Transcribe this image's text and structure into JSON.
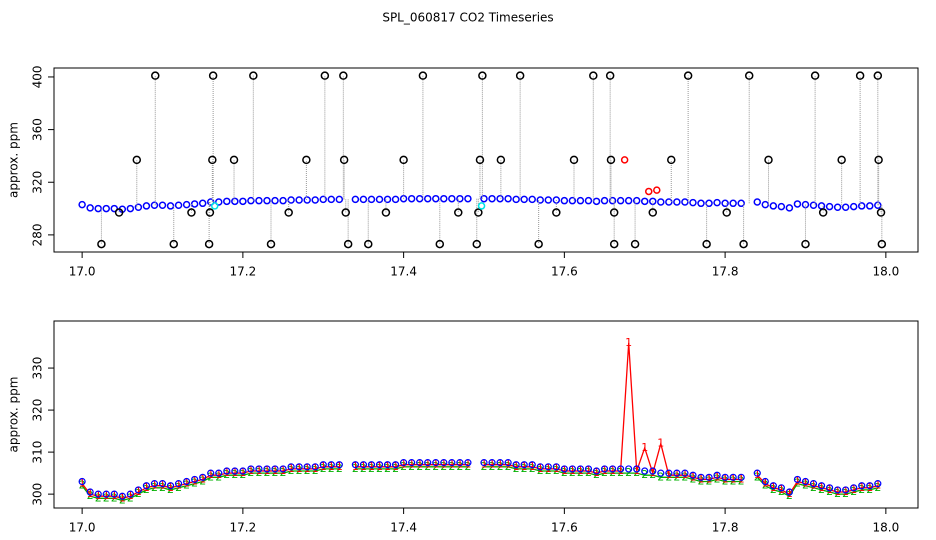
{
  "chart_data": [
    {
      "type": "scatter",
      "title": "SPL_060817  CO2 Timeseries",
      "y_label": "approx. ppm",
      "xlim": [
        16.965,
        18.04
      ],
      "ylim": [
        267,
        406.8
      ],
      "xticks": [
        {
          "value": 17,
          "label": "17.0"
        },
        {
          "value": 17.2,
          "label": "17.2"
        },
        {
          "value": 17.4,
          "label": "17.4"
        },
        {
          "value": 17.6,
          "label": "17.6"
        },
        {
          "value": 17.8,
          "label": "17.8"
        },
        {
          "value": 18,
          "label": "18.0"
        }
      ],
      "yticks": [
        280,
        320,
        360,
        400
      ],
      "x": [
        17.0,
        17.01,
        17.02,
        17.03,
        17.04,
        17.05,
        17.06,
        17.07,
        17.08,
        17.09,
        17.1,
        17.11,
        17.12,
        17.13,
        17.14,
        17.15,
        17.16,
        17.17,
        17.18,
        17.19,
        17.2,
        17.21,
        17.22,
        17.23,
        17.24,
        17.25,
        17.26,
        17.27,
        17.28,
        17.29,
        17.3,
        17.31,
        17.32,
        17.33,
        17.34,
        17.35,
        17.36,
        17.37,
        17.38,
        17.39,
        17.4,
        17.41,
        17.42,
        17.43,
        17.44,
        17.45,
        17.46,
        17.47,
        17.48,
        17.49,
        17.5,
        17.51,
        17.52,
        17.53,
        17.54,
        17.55,
        17.56,
        17.57,
        17.58,
        17.59,
        17.6,
        17.61,
        17.62,
        17.63,
        17.64,
        17.65,
        17.66,
        17.67,
        17.68,
        17.69,
        17.7,
        17.71,
        17.72,
        17.73,
        17.74,
        17.75,
        17.76,
        17.77,
        17.78,
        17.79,
        17.8,
        17.81,
        17.82,
        17.83,
        17.84,
        17.85,
        17.86,
        17.87,
        17.88,
        17.89,
        17.9,
        17.91,
        17.92,
        17.93,
        17.94,
        17.95,
        17.96,
        17.97,
        17.98,
        17.99
      ],
      "series": [
        {
          "color": "#0000ff",
          "values": [
            303,
            300.5,
            300,
            300,
            300,
            299.5,
            300,
            301,
            302,
            302.5,
            302.5,
            302,
            302.5,
            303,
            303.5,
            304,
            305,
            305,
            305.5,
            305.5,
            305.5,
            306,
            306,
            306,
            306,
            306,
            306.5,
            306.5,
            306.5,
            306.5,
            307,
            307,
            307,
            null,
            307,
            307,
            307,
            307,
            307,
            307,
            307.5,
            307.5,
            307.5,
            307.5,
            307.5,
            307.5,
            307.5,
            307.5,
            307.5,
            null,
            307.5,
            307.5,
            307.5,
            307.5,
            307,
            307,
            307,
            306.5,
            306.5,
            306.5,
            306,
            306,
            306,
            306,
            305.5,
            306,
            306,
            306,
            306,
            306,
            305.5,
            305.5,
            305,
            305,
            305,
            305,
            304.5,
            304,
            304,
            304.5,
            304,
            304,
            304,
            null,
            305,
            303,
            302,
            301.5,
            300.5,
            303.5,
            303,
            302.5,
            302,
            301.5,
            301,
            301,
            301.5,
            302,
            302,
            302.5
          ]
        },
        {
          "color": "#000000",
          "spikes": true,
          "x": [
            17.091,
            17.163,
            17.213,
            17.302,
            17.325,
            17.424,
            17.498,
            17.545,
            17.636,
            17.657,
            17.754,
            17.83,
            17.912,
            17.968,
            17.99,
            17.024,
            17.114,
            17.158,
            17.235,
            17.331,
            17.356,
            17.445,
            17.491,
            17.568,
            17.662,
            17.688,
            17.777,
            17.823,
            17.9,
            17.995,
            17.068,
            17.162,
            17.189,
            17.279,
            17.326,
            17.4,
            17.495,
            17.521,
            17.612,
            17.658,
            17.733,
            17.854,
            17.945,
            17.991,
            17.046,
            17.136,
            17.159,
            17.257,
            17.328,
            17.378,
            17.468,
            17.493,
            17.59,
            17.662,
            17.71,
            17.802,
            17.922,
            17.994
          ],
          "values": [
            401,
            401,
            401,
            401,
            401,
            401,
            401,
            401,
            401,
            401,
            401,
            401,
            401,
            401,
            401,
            273,
            273,
            273,
            273,
            273,
            273,
            273,
            273,
            273,
            273,
            273,
            273,
            273,
            273,
            273,
            337,
            337,
            337,
            337,
            337,
            337,
            337,
            337,
            337,
            337,
            337,
            337,
            337,
            337,
            297,
            297,
            297,
            297,
            297,
            297,
            297,
            297,
            297,
            297,
            297,
            297,
            297,
            297
          ]
        },
        {
          "color": "#ff0000",
          "x": [
            17.675,
            17.705,
            17.715
          ],
          "values": [
            337,
            313,
            314
          ]
        },
        {
          "color": "#00e5e5",
          "x": [
            17.165,
            17.497
          ],
          "values": [
            302,
            302
          ]
        }
      ]
    },
    {
      "type": "line",
      "y_label": "approx. ppm",
      "xlim": [
        16.965,
        18.04
      ],
      "ylim": [
        296.7,
        341.2
      ],
      "xticks": [
        {
          "value": 17,
          "label": "17.0"
        },
        {
          "value": 17.2,
          "label": "17.2"
        },
        {
          "value": 17.4,
          "label": "17.4"
        },
        {
          "value": 17.6,
          "label": "17.6"
        },
        {
          "value": 17.8,
          "label": "17.8"
        },
        {
          "value": 18,
          "label": "18.0"
        }
      ],
      "yticks": [
        300,
        310,
        320,
        330
      ],
      "x": [
        17.0,
        17.01,
        17.02,
        17.03,
        17.04,
        17.05,
        17.06,
        17.07,
        17.08,
        17.09,
        17.1,
        17.11,
        17.12,
        17.13,
        17.14,
        17.15,
        17.16,
        17.17,
        17.18,
        17.19,
        17.2,
        17.21,
        17.22,
        17.23,
        17.24,
        17.25,
        17.26,
        17.27,
        17.28,
        17.29,
        17.3,
        17.31,
        17.32,
        17.33,
        17.34,
        17.35,
        17.36,
        17.37,
        17.38,
        17.39,
        17.4,
        17.41,
        17.42,
        17.43,
        17.44,
        17.45,
        17.46,
        17.47,
        17.48,
        17.49,
        17.5,
        17.51,
        17.52,
        17.53,
        17.54,
        17.55,
        17.56,
        17.57,
        17.58,
        17.59,
        17.6,
        17.61,
        17.62,
        17.63,
        17.64,
        17.65,
        17.66,
        17.67,
        17.68,
        17.69,
        17.7,
        17.71,
        17.72,
        17.73,
        17.74,
        17.75,
        17.76,
        17.77,
        17.78,
        17.79,
        17.8,
        17.81,
        17.82,
        17.83,
        17.84,
        17.85,
        17.86,
        17.87,
        17.88,
        17.89,
        17.9,
        17.91,
        17.92,
        17.93,
        17.94,
        17.95,
        17.96,
        17.97,
        17.98,
        17.99
      ],
      "series": [
        {
          "color": "#00b000",
          "marker": "2",
          "line": true,
          "values": [
            302,
            299.5,
            299,
            299,
            299,
            298.5,
            299,
            300,
            301,
            301.5,
            301.5,
            301,
            301.5,
            302,
            302.5,
            303,
            304,
            304,
            304.5,
            304.5,
            304.5,
            305,
            305,
            305,
            305,
            305,
            305.5,
            305.5,
            305.5,
            305.5,
            306,
            306,
            306,
            null,
            306,
            306,
            306,
            306,
            306,
            306,
            306.5,
            306.5,
            306.5,
            306.5,
            306.5,
            306.5,
            306.5,
            306.5,
            306.5,
            null,
            306.5,
            306.5,
            306.5,
            306.5,
            306,
            306,
            306,
            305.5,
            305.5,
            305.5,
            305,
            305,
            305,
            305,
            304.5,
            305,
            305,
            305,
            305,
            305,
            304.5,
            304.5,
            304,
            304,
            304,
            304,
            303.5,
            303,
            303,
            303.5,
            303,
            303,
            303,
            null,
            304,
            302,
            301,
            300.5,
            299.5,
            302.5,
            302,
            301.5,
            301,
            300.5,
            300,
            300,
            300.5,
            301,
            301,
            301.5
          ]
        },
        {
          "color": "#ff0000",
          "marker": "1",
          "line": true,
          "values": [
            302.5,
            300,
            299.5,
            299.5,
            299.5,
            299,
            299.5,
            300.5,
            301.5,
            302,
            302,
            301.5,
            302,
            302.5,
            303,
            303.5,
            304.5,
            304.5,
            305,
            305,
            305,
            305.5,
            305.5,
            305.5,
            305.5,
            305.5,
            306,
            306,
            306,
            306,
            306.5,
            306.5,
            306.5,
            null,
            306.5,
            306.5,
            306.5,
            306.5,
            306.5,
            306.5,
            307,
            307,
            307,
            307,
            307,
            307,
            307,
            307,
            307,
            null,
            307,
            307,
            307,
            307,
            306.5,
            306.5,
            306.5,
            306,
            306,
            306,
            305.5,
            305.5,
            305.5,
            305.5,
            305,
            305.5,
            305.5,
            305.5,
            336,
            305.5,
            311,
            305,
            312,
            304.5,
            304.5,
            304.5,
            304,
            303.5,
            303.5,
            304,
            303.5,
            303.5,
            303.5,
            null,
            304.5,
            302.5,
            301.5,
            301,
            300,
            303,
            302.5,
            302,
            301.5,
            301,
            300.5,
            300.5,
            301,
            301.5,
            301.5,
            302
          ]
        },
        {
          "color": "#0000ff",
          "marker": "circle",
          "line": false,
          "values": [
            303,
            300.5,
            300,
            300,
            300,
            299.5,
            300,
            301,
            302,
            302.5,
            302.5,
            302,
            302.5,
            303,
            303.5,
            304,
            305,
            305,
            305.5,
            305.5,
            305.5,
            306,
            306,
            306,
            306,
            306,
            306.5,
            306.5,
            306.5,
            306.5,
            307,
            307,
            307,
            null,
            307,
            307,
            307,
            307,
            307,
            307,
            307.5,
            307.5,
            307.5,
            307.5,
            307.5,
            307.5,
            307.5,
            307.5,
            307.5,
            null,
            307.5,
            307.5,
            307.5,
            307.5,
            307,
            307,
            307,
            306.5,
            306.5,
            306.5,
            306,
            306,
            306,
            306,
            305.5,
            306,
            306,
            306,
            306,
            306,
            305.5,
            305.5,
            305,
            305,
            305,
            305,
            304.5,
            304,
            304,
            304.5,
            304,
            304,
            304,
            null,
            305,
            303,
            302,
            301.5,
            300.5,
            303.5,
            303,
            302.5,
            302,
            301.5,
            301,
            301,
            301.5,
            302,
            302,
            302.5
          ]
        }
      ]
    }
  ]
}
